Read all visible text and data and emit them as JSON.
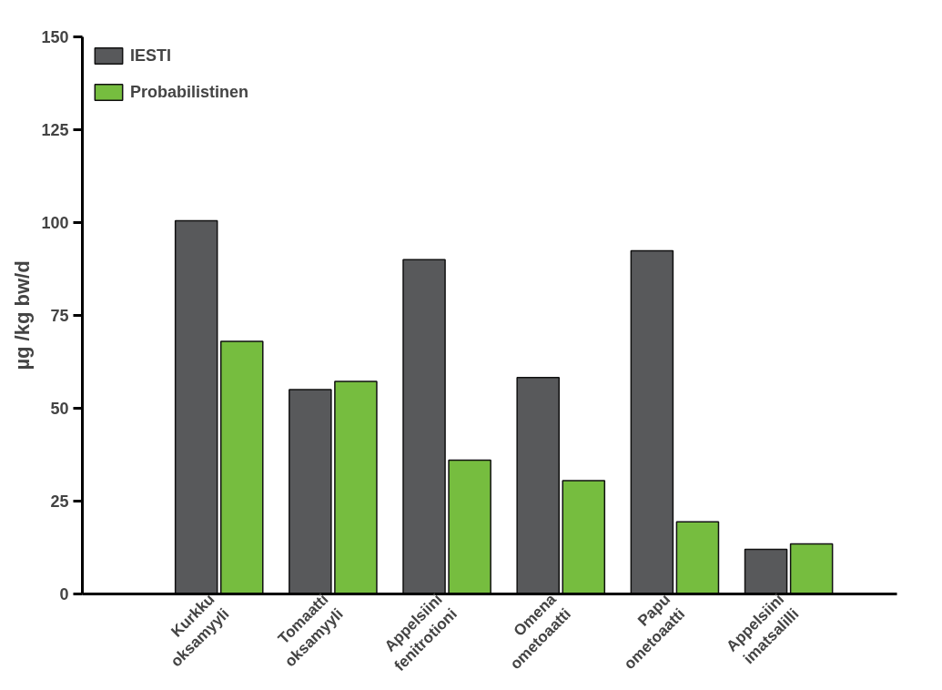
{
  "chart_data": {
    "type": "bar",
    "ylabel": "µg /kg bw/d",
    "categories": [
      "Kurkku\noksamyyli",
      "Tomaatti\noksamyyli",
      "Appelsiini\nfenitrotioni",
      "Omena\nometoaatti",
      "Papu\nometoaatti",
      "Appelsiini\nimatsalilli"
    ],
    "series": [
      {
        "name": "IESTI",
        "color": "#58595b",
        "values": [
          100.5,
          55,
          90,
          58.3,
          92.4,
          12
        ]
      },
      {
        "name": "Probabilistinen",
        "color": "#76bd3f",
        "values": [
          68,
          57.2,
          36,
          30.5,
          19.4,
          13.5
        ]
      }
    ],
    "ylim": [
      0,
      150
    ],
    "yticks": [
      0,
      25,
      50,
      75,
      100,
      125,
      150
    ],
    "grid": false,
    "legend": "top left"
  }
}
